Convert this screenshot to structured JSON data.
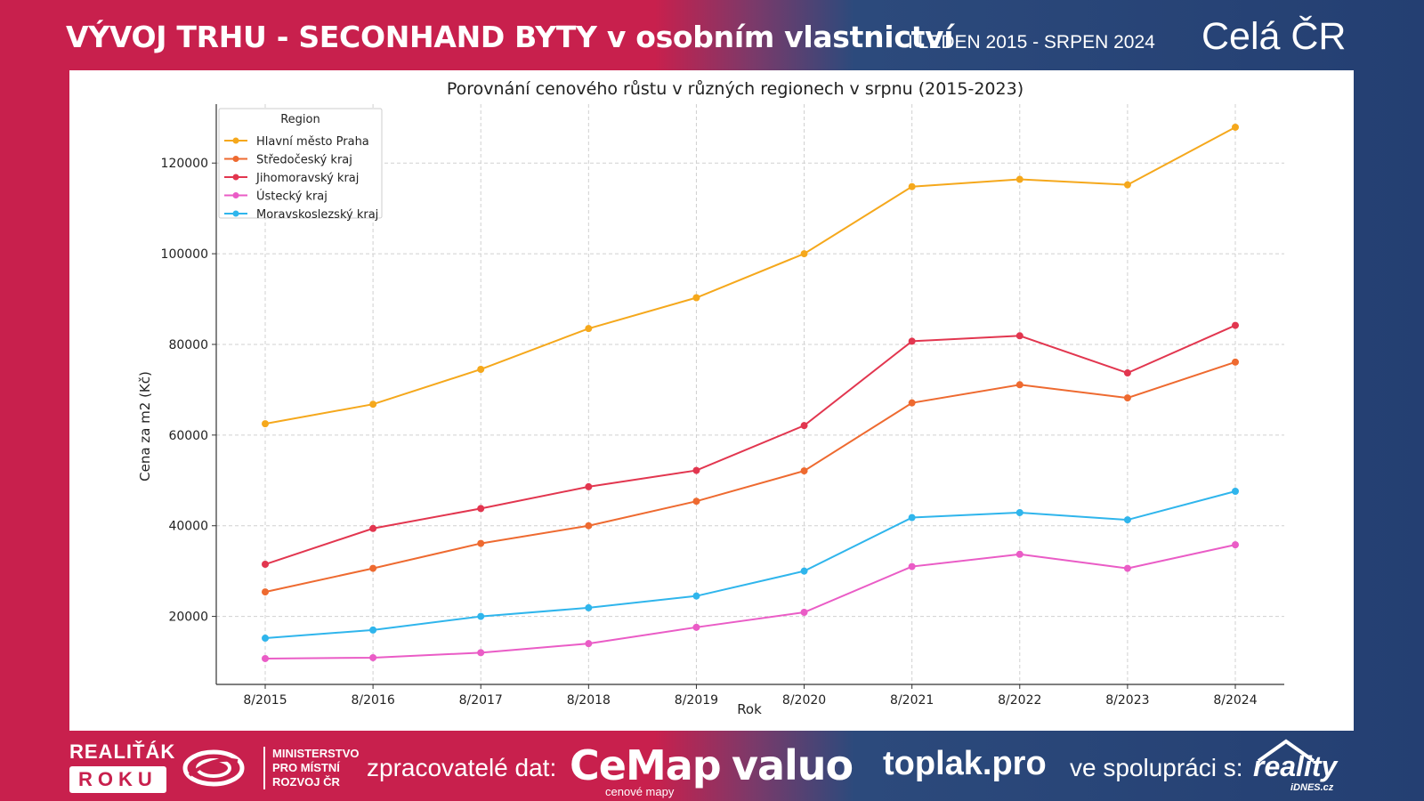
{
  "header": {
    "title_main": "VÝVOJ TRHU - SECONHAND BYTY v osobním vlastnictví",
    "title_period": "I LEDEN 2015 - SRPEN 2024",
    "region": "Celá ČR"
  },
  "colors": {
    "brand_red": "#c8204d",
    "brand_blue": "#243f72"
  },
  "chart_data": {
    "type": "line",
    "title": "Porovnání cenového růstu v různých regionech v srpnu (2015-2023)",
    "xlabel": "Rok",
    "ylabel": "Cena za m2 (Kč)",
    "ylim": [
      5000,
      133000
    ],
    "yticks": [
      20000,
      40000,
      60000,
      80000,
      100000,
      120000
    ],
    "ytick_labels": [
      "20000",
      "40000",
      "60000",
      "80000",
      "100000",
      "120000"
    ],
    "grid": true,
    "legend_title": "Region",
    "legend_position": "top-left",
    "categories": [
      "8/2015",
      "8/2016",
      "8/2017",
      "8/2018",
      "8/2019",
      "8/2020",
      "8/2021",
      "8/2022",
      "8/2023",
      "8/2024"
    ],
    "series": [
      {
        "name": "Hlavní město Praha",
        "color": "#f5a81c",
        "values": [
          62500,
          66800,
          74500,
          83500,
          90300,
          100000,
          114800,
          116400,
          115200,
          127900
        ]
      },
      {
        "name": "Středočeský kraj",
        "color": "#ee6a30",
        "values": [
          25400,
          30600,
          36100,
          40000,
          45400,
          52100,
          67100,
          71100,
          68200,
          76100
        ]
      },
      {
        "name": "Jihomoravský kraj",
        "color": "#e2364f",
        "values": [
          31500,
          39400,
          43800,
          48600,
          52200,
          62100,
          80700,
          81900,
          73700,
          84200
        ]
      },
      {
        "name": "Ústecký kraj",
        "color": "#ea5cc6",
        "values": [
          10700,
          10900,
          12000,
          14000,
          17600,
          20900,
          31000,
          33700,
          30600,
          35800
        ]
      },
      {
        "name": "Moravskoslezský kraj",
        "color": "#2fb5ec",
        "values": [
          15200,
          17000,
          20000,
          21900,
          24500,
          30000,
          41800,
          42900,
          41300,
          47600
        ]
      }
    ]
  },
  "footer": {
    "realitak_top": "REALIŤÁK",
    "realitak_box": "ROKU",
    "mmr_line1": "MINISTERSTVO",
    "mmr_line2": "PRO MÍSTNÍ",
    "mmr_line3": "ROZVOJ ČR",
    "processors_label": "zpracovatelé dat:",
    "cemap": "CeMap",
    "cemap_sub": "cenové mapy",
    "valuo": "valuo",
    "toplak": "toplak.pro",
    "coop_label": "ve spolupráci s:",
    "reality": "reality",
    "reality_sub": "iDNES.cz"
  }
}
